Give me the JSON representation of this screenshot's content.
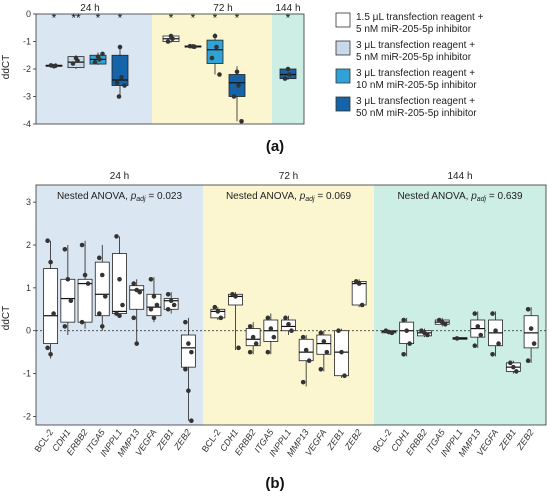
{
  "colors": {
    "panel_24h": "#dbe6f3",
    "panel_72h": "#fbf6cf",
    "panel_144h": "#cdeee5",
    "box_c1": "#ffffff",
    "box_c2": "#c8d9ea",
    "box_c3": "#2fa3d6",
    "box_c4": "#1563a8",
    "point": "#333333"
  },
  "chart_data": [
    {
      "type": "box",
      "panel_label": "(a)",
      "ylabel": "ddCT",
      "ylim": [
        -4,
        0
      ],
      "yticks": [
        0,
        -1,
        -2,
        -3,
        -4
      ],
      "groups": [
        "24 h",
        "72 h",
        "144 h"
      ],
      "legend_placement": "right",
      "series": [
        {
          "name": "1.5 μL transfection reagent + 5 nM miR-205-5p inhibitor"
        },
        {
          "name": "3 μL transfection reagent + 5 nM miR-205-5p inhibitor"
        },
        {
          "name": "3 μL transfection reagent + 10 nM miR-205-5p inhibitor"
        },
        {
          "name": "3 μL transfection reagent + 50 nM miR-205-5p inhibitor"
        }
      ],
      "boxes": [
        {
          "group": "24 h",
          "series": 0,
          "q1": -1.9,
          "median": -1.88,
          "q3": -1.86,
          "whislo": -1.9,
          "whishi": -1.86,
          "points": [
            -1.9,
            -1.88,
            -1.87
          ],
          "significance": "*"
        },
        {
          "group": "24 h",
          "series": 1,
          "q1": -1.95,
          "median": -1.75,
          "q3": -1.55,
          "whislo": -2.0,
          "whishi": -1.5,
          "points": [
            -1.6,
            -1.7,
            -1.8
          ],
          "significance": "**"
        },
        {
          "group": "24 h",
          "series": 2,
          "q1": -1.82,
          "median": -1.65,
          "q3": -1.5,
          "whislo": -1.85,
          "whishi": -1.4,
          "points": [
            -1.55,
            -1.65,
            -1.75,
            -1.45
          ],
          "significance": "*"
        },
        {
          "group": "24 h",
          "series": 3,
          "q1": -2.6,
          "median": -2.4,
          "q3": -1.5,
          "whislo": -3.0,
          "whishi": -1.2,
          "points": [
            -1.2,
            -2.3,
            -2.5,
            -2.6,
            -3.0
          ],
          "significance": "*"
        },
        {
          "group": "72 h",
          "series": 0,
          "q1": -1.0,
          "median": -0.9,
          "q3": -0.8,
          "whislo": -1.05,
          "whishi": -0.75,
          "points": [
            -0.8,
            -0.9,
            -1.0
          ],
          "significance": "*"
        },
        {
          "group": "72 h",
          "series": 1,
          "q1": -1.2,
          "median": -1.18,
          "q3": -1.16,
          "whislo": -1.2,
          "whishi": -1.16,
          "points": [
            -1.18,
            -1.19,
            -1.17
          ],
          "significance": "*"
        },
        {
          "group": "72 h",
          "series": 2,
          "q1": -1.8,
          "median": -1.3,
          "q3": -0.95,
          "whislo": -2.2,
          "whishi": -0.7,
          "points": [
            -0.8,
            -1.2,
            -1.6,
            -2.2
          ],
          "significance": "*"
        },
        {
          "group": "72 h",
          "series": 3,
          "q1": -3.0,
          "median": -2.5,
          "q3": -2.2,
          "whislo": -3.9,
          "whishi": -1.9,
          "points": [
            -2.1,
            -2.6,
            -3.0,
            -3.9
          ],
          "significance": "*"
        },
        {
          "group": "144 h",
          "series": 3,
          "q1": -2.35,
          "median": -2.2,
          "q3": -2.0,
          "whislo": -2.4,
          "whishi": -1.95,
          "points": [
            -2.0,
            -2.2,
            -2.35
          ],
          "significance": "*"
        }
      ]
    },
    {
      "type": "box",
      "panel_label": "(b)",
      "ylabel": "ddCT",
      "ylim": [
        -2.2,
        3.4
      ],
      "yticks": [
        3,
        2,
        1,
        0,
        -1,
        -2
      ],
      "reference_line": 0,
      "genes": [
        "BCL-2",
        "CDH1",
        "ERBB2",
        "ITGA5",
        "INPPL1",
        "MMP13",
        "VEGFA",
        "ZEB1",
        "ZEB2"
      ],
      "gene_italic": [
        false,
        true,
        true,
        true,
        true,
        true,
        true,
        true,
        true
      ],
      "panels": [
        {
          "title": "24 h",
          "annotation": "Nested ANOVA, p",
          "annotation_sub": "adj",
          "annotation_value": " = 0.023",
          "boxes": [
            {
              "gene": "BCL-2",
              "q1": -0.3,
              "median": 0.35,
              "q3": 1.45,
              "whislo": -0.65,
              "whishi": 2.1,
              "points": [
                2.1,
                1.6,
                0.4,
                -0.4,
                -0.55
              ]
            },
            {
              "gene": "CDH1",
              "q1": 0.2,
              "median": 0.75,
              "q3": 1.2,
              "whislo": -0.1,
              "whishi": 2.0,
              "points": [
                1.9,
                1.2,
                0.7,
                0.1
              ]
            },
            {
              "gene": "ERBB2",
              "q1": 0.2,
              "median": 1.1,
              "q3": 1.2,
              "whislo": 0.05,
              "whishi": 2.1,
              "points": [
                2.0,
                1.3,
                1.1,
                0.2
              ]
            },
            {
              "gene": "ITGA5",
              "q1": 0.35,
              "median": 0.85,
              "q3": 1.6,
              "whislo": 0.0,
              "whishi": 2.0,
              "points": [
                1.7,
                1.3,
                0.8,
                0.4,
                0.1
              ]
            },
            {
              "gene": "INPPL1",
              "q1": 0.4,
              "median": 0.45,
              "q3": 1.8,
              "whislo": 0.3,
              "whishi": 2.2,
              "points": [
                2.2,
                1.2,
                0.6,
                0.4,
                0.35
              ]
            },
            {
              "gene": "MMP13",
              "q1": 0.5,
              "median": 0.95,
              "q3": 1.05,
              "whislo": -0.35,
              "whishi": 1.2,
              "points": [
                1.1,
                0.95,
                0.9,
                0.3,
                -0.3
              ]
            },
            {
              "gene": "VEGFA",
              "q1": 0.35,
              "median": 0.55,
              "q3": 0.85,
              "whislo": 0.2,
              "whishi": 1.25,
              "points": [
                1.2,
                0.8,
                0.6,
                0.5,
                0.3
              ]
            },
            {
              "gene": "ZEB1",
              "q1": 0.5,
              "median": 0.7,
              "q3": 0.75,
              "whislo": 0.4,
              "whishi": 0.9,
              "points": [
                0.85,
                0.7,
                0.6,
                0.5
              ]
            },
            {
              "gene": "ZEB2",
              "q1": -0.85,
              "median": -0.4,
              "q3": -0.1,
              "whislo": -2.1,
              "whishi": 0.3,
              "points": [
                0.2,
                -0.3,
                -0.5,
                -0.9,
                -1.4,
                -2.1
              ]
            }
          ]
        },
        {
          "title": "72 h",
          "annotation": "Nested ANOVA, p",
          "annotation_sub": "adj",
          "annotation_value": " = 0.069",
          "boxes": [
            {
              "gene": "BCL-2",
              "q1": 0.3,
              "median": 0.45,
              "q3": 0.5,
              "whislo": 0.25,
              "whishi": 0.55,
              "points": [
                0.55,
                0.45,
                0.3
              ]
            },
            {
              "gene": "CDH1",
              "q1": 0.6,
              "median": 0.8,
              "q3": 0.85,
              "whislo": -0.45,
              "whishi": 0.9,
              "points": [
                0.85,
                0.8,
                -0.4
              ]
            },
            {
              "gene": "ERBB2",
              "q1": -0.35,
              "median": -0.2,
              "q3": 0.05,
              "whislo": -0.55,
              "whishi": 0.2,
              "points": [
                0.1,
                -0.15,
                -0.3,
                -0.5
              ]
            },
            {
              "gene": "ITGA5",
              "q1": -0.25,
              "median": 0.0,
              "q3": 0.25,
              "whislo": -0.55,
              "whishi": 0.4,
              "points": [
                0.3,
                0.05,
                -0.15,
                -0.5
              ]
            },
            {
              "gene": "INPPL1",
              "q1": 0.0,
              "median": 0.1,
              "q3": 0.25,
              "whislo": -0.1,
              "whishi": 0.35,
              "points": [
                0.3,
                0.15,
                0.0
              ]
            },
            {
              "gene": "MMP13",
              "q1": -0.7,
              "median": -0.5,
              "q3": -0.2,
              "whislo": -1.3,
              "whishi": -0.1,
              "points": [
                -0.15,
                -0.45,
                -0.7,
                -1.2
              ]
            },
            {
              "gene": "VEGFA",
              "q1": -0.55,
              "median": -0.3,
              "q3": -0.1,
              "whislo": -0.95,
              "whishi": 0.0,
              "points": [
                -0.05,
                -0.25,
                -0.5,
                -0.9
              ]
            },
            {
              "gene": "ZEB1",
              "q1": -1.05,
              "median": -0.5,
              "q3": 0.0,
              "whislo": -1.1,
              "whishi": 0.05,
              "points": [
                0.0,
                -0.5,
                -1.05
              ]
            },
            {
              "gene": "ZEB2",
              "q1": 0.6,
              "median": 1.1,
              "q3": 1.15,
              "whislo": 0.55,
              "whishi": 1.2,
              "points": [
                1.15,
                1.1,
                0.6
              ]
            }
          ]
        },
        {
          "title": "144 h",
          "annotation": "Nested ANOVA, p",
          "annotation_sub": "adj",
          "annotation_value": " = 0.639",
          "boxes": [
            {
              "gene": "BCL-2",
              "q1": -0.05,
              "median": -0.02,
              "q3": 0.0,
              "whislo": -0.08,
              "whishi": 0.02,
              "points": [
                0.0,
                -0.03,
                -0.05
              ]
            },
            {
              "gene": "CDH1",
              "q1": -0.3,
              "median": 0.0,
              "q3": 0.2,
              "whislo": -0.6,
              "whishi": 0.3,
              "points": [
                0.25,
                0.0,
                -0.3,
                -0.55
              ]
            },
            {
              "gene": "ERBB2",
              "q1": -0.12,
              "median": -0.05,
              "q3": 0.0,
              "whislo": -0.15,
              "whishi": 0.05,
              "points": [
                0.0,
                -0.05,
                -0.1
              ]
            },
            {
              "gene": "ITGA5",
              "q1": 0.15,
              "median": 0.2,
              "q3": 0.25,
              "whislo": 0.1,
              "whishi": 0.3,
              "points": [
                0.25,
                0.2,
                0.15
              ]
            },
            {
              "gene": "INPPL1",
              "q1": -0.2,
              "median": -0.18,
              "q3": -0.16,
              "whislo": -0.2,
              "whishi": -0.16,
              "points": [
                -0.18
              ]
            },
            {
              "gene": "MMP13",
              "q1": -0.15,
              "median": 0.05,
              "q3": 0.25,
              "whislo": -0.4,
              "whishi": 0.45,
              "points": [
                0.4,
                0.1,
                -0.1,
                -0.35
              ]
            },
            {
              "gene": "VEGFA",
              "q1": -0.35,
              "median": -0.05,
              "q3": 0.25,
              "whislo": -0.6,
              "whishi": 0.45,
              "points": [
                0.4,
                0.0,
                -0.3,
                -0.55
              ]
            },
            {
              "gene": "ZEB1",
              "q1": -0.95,
              "median": -0.85,
              "q3": -0.75,
              "whislo": -1.0,
              "whishi": -0.7,
              "points": [
                -0.75,
                -0.85,
                -0.95
              ]
            },
            {
              "gene": "ZEB2",
              "q1": -0.4,
              "median": -0.05,
              "q3": 0.35,
              "whislo": -0.75,
              "whishi": 0.55,
              "points": [
                0.5,
                0.05,
                -0.3,
                -0.7
              ]
            }
          ]
        }
      ]
    }
  ]
}
